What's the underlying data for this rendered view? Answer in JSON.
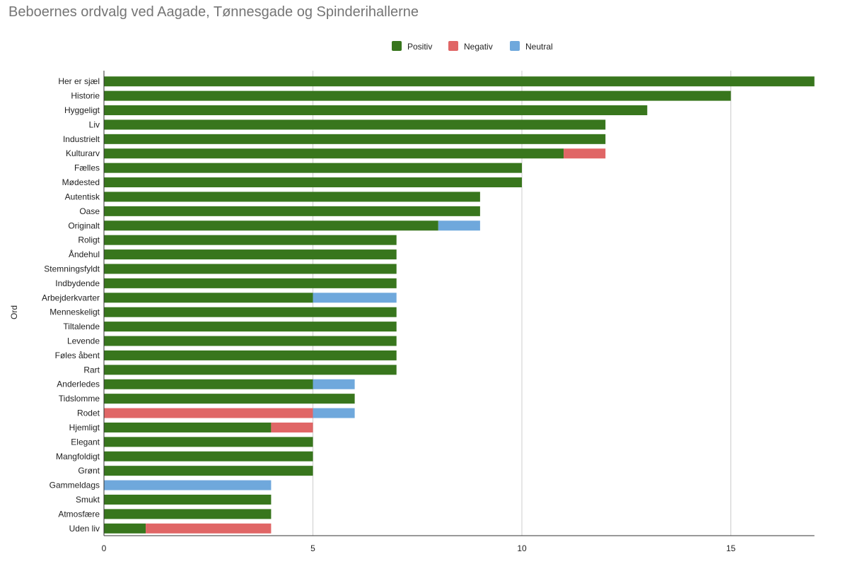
{
  "chart_data": {
    "type": "bar",
    "orientation": "horizontal",
    "stacked": true,
    "title": "Beboernes ordvalg ved Aagade, Tønnesgade og Spinderihallerne",
    "xlabel": "",
    "ylabel": "Ord",
    "xlim": [
      0,
      17
    ],
    "xticks": [
      0,
      5,
      10,
      15
    ],
    "grid": true,
    "legend_position": "top",
    "categories": [
      "Her er sjæl",
      "Historie",
      "Hyggeligt",
      "Liv",
      "Industrielt",
      "Kulturarv",
      "Fælles",
      "Mødested",
      "Autentisk",
      "Oase",
      "Originalt",
      "Roligt",
      "Åndehul",
      "Stemningsfyldt",
      "Indbydende",
      "Arbejderkvarter",
      "Menneskeligt",
      "Tiltalende",
      "Levende",
      "Føles åbent",
      "Rart",
      "Anderledes",
      "Tidslomme",
      "Rodet",
      "Hjemligt",
      "Elegant",
      "Mangfoldigt",
      "Grønt",
      "Gammeldags",
      "Smukt",
      "Atmosfære",
      "Uden liv"
    ],
    "series": [
      {
        "name": "Positiv",
        "color": "#38761d",
        "values": [
          17,
          15,
          13,
          12,
          12,
          11,
          10,
          10,
          9,
          9,
          8,
          7,
          7,
          7,
          7,
          5,
          7,
          7,
          7,
          7,
          7,
          5,
          6,
          0,
          4,
          5,
          5,
          5,
          0,
          4,
          4,
          1
        ]
      },
      {
        "name": "Negativ",
        "color": "#e06666",
        "values": [
          0,
          0,
          0,
          0,
          0,
          1,
          0,
          0,
          0,
          0,
          0,
          0,
          0,
          0,
          0,
          0,
          0,
          0,
          0,
          0,
          0,
          0,
          0,
          5,
          1,
          0,
          0,
          0,
          0,
          0,
          0,
          3
        ]
      },
      {
        "name": "Neutral",
        "color": "#6fa8dc",
        "values": [
          0,
          0,
          0,
          0,
          0,
          0,
          0,
          0,
          0,
          0,
          1,
          0,
          0,
          0,
          0,
          2,
          0,
          0,
          0,
          0,
          0,
          1,
          0,
          1,
          0,
          0,
          0,
          0,
          4,
          0,
          0,
          0
        ]
      }
    ]
  }
}
